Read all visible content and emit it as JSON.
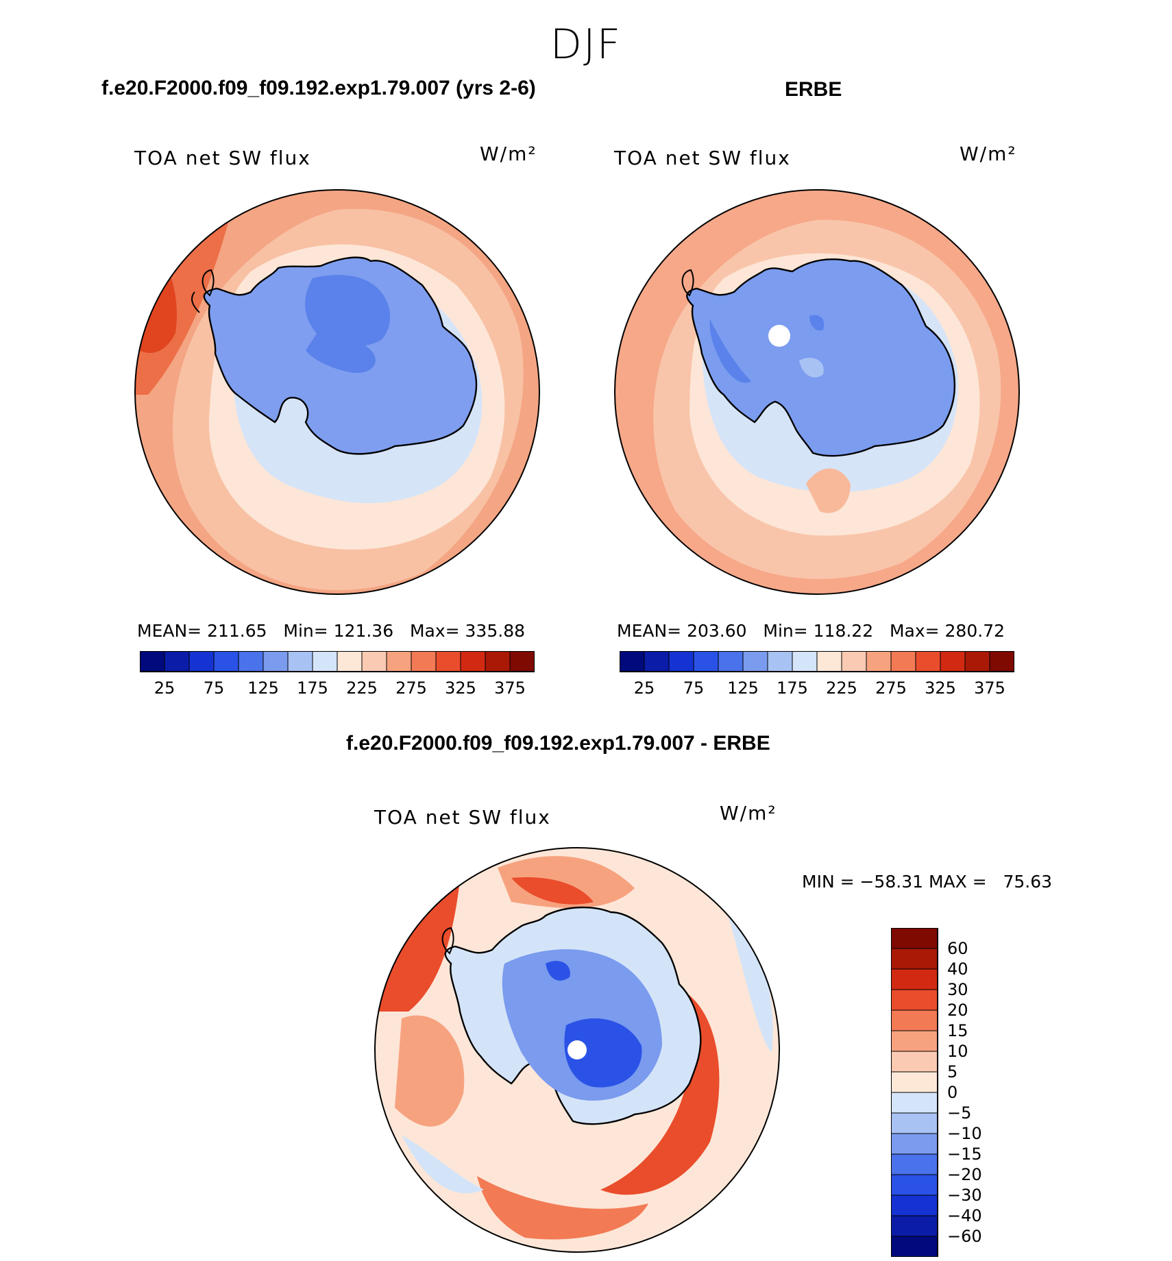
{
  "figure": {
    "season": "DJF",
    "titles": {
      "model": "f.e20.F2000.f09_f09.192.exp1.79.007 (yrs 2-6)",
      "obs": "ERBE",
      "diff": "f.e20.F2000.f09_f09.192.exp1.79.007 - ERBE"
    },
    "variable_label": "TOA net SW flux",
    "units_label": "W/m²"
  },
  "panels": {
    "model": {
      "stats": "MEAN= 211.65   Min= 121.36   Max= 335.88"
    },
    "obs": {
      "stats": "MEAN= 203.60   Min= 118.22   Max= 280.72"
    },
    "diff": {
      "stats": "MIN = −58.31 MAX =   75.63"
    }
  },
  "colors": {
    "abs_levels": [
      "#000a7c",
      "#0a1ca8",
      "#1533d2",
      "#2a52e6",
      "#4a72ea",
      "#7a9bee",
      "#a9c2f4",
      "#d4e4f9",
      "#fde8d8",
      "#fbcab2",
      "#f7a27f",
      "#f27a55",
      "#ea4d2c",
      "#d22a12",
      "#aa1806",
      "#7e0a02"
    ],
    "diff_levels": [
      "#000a7c",
      "#0a1ca8",
      "#1533d2",
      "#2a52e6",
      "#4a72ea",
      "#7a9bee",
      "#a9c2f4",
      "#d4e4f9",
      "#fde8d8",
      "#fbcab2",
      "#f7a27f",
      "#f27a55",
      "#ea4d2c",
      "#d22a12",
      "#aa1806",
      "#7e0a02"
    ],
    "land_model": "#7f9ef0",
    "land_obs": "#7b9cef",
    "land_dark": "#4d74e8",
    "ocean_model": "#f3a07a",
    "ocean_obs": "#f8b794",
    "coast": "#000000"
  },
  "chart_data": {
    "type": "heatmap",
    "projection": "south-polar-stereographic",
    "region": "Southern Hemisphere (Antarctica)",
    "abs_colorbar_ticks": [
      "25",
      "75",
      "125",
      "175",
      "225",
      "275",
      "325",
      "375"
    ],
    "abs_levels_values": [
      25,
      50,
      75,
      100,
      125,
      150,
      175,
      200,
      225,
      250,
      275,
      300,
      325,
      350,
      375
    ],
    "diff_colorbar_ticks": [
      "60",
      "40",
      "30",
      "20",
      "15",
      "10",
      "5",
      "0",
      "−5",
      "−10",
      "−15",
      "−20",
      "−30",
      "−40",
      "−60"
    ],
    "panels": [
      {
        "name": "model",
        "mean": 211.65,
        "min": 121.36,
        "max": 335.88
      },
      {
        "name": "ERBE",
        "mean": 203.6,
        "min": 118.22,
        "max": 280.72
      },
      {
        "name": "model - ERBE",
        "min": -58.31,
        "max": 75.63
      }
    ]
  }
}
